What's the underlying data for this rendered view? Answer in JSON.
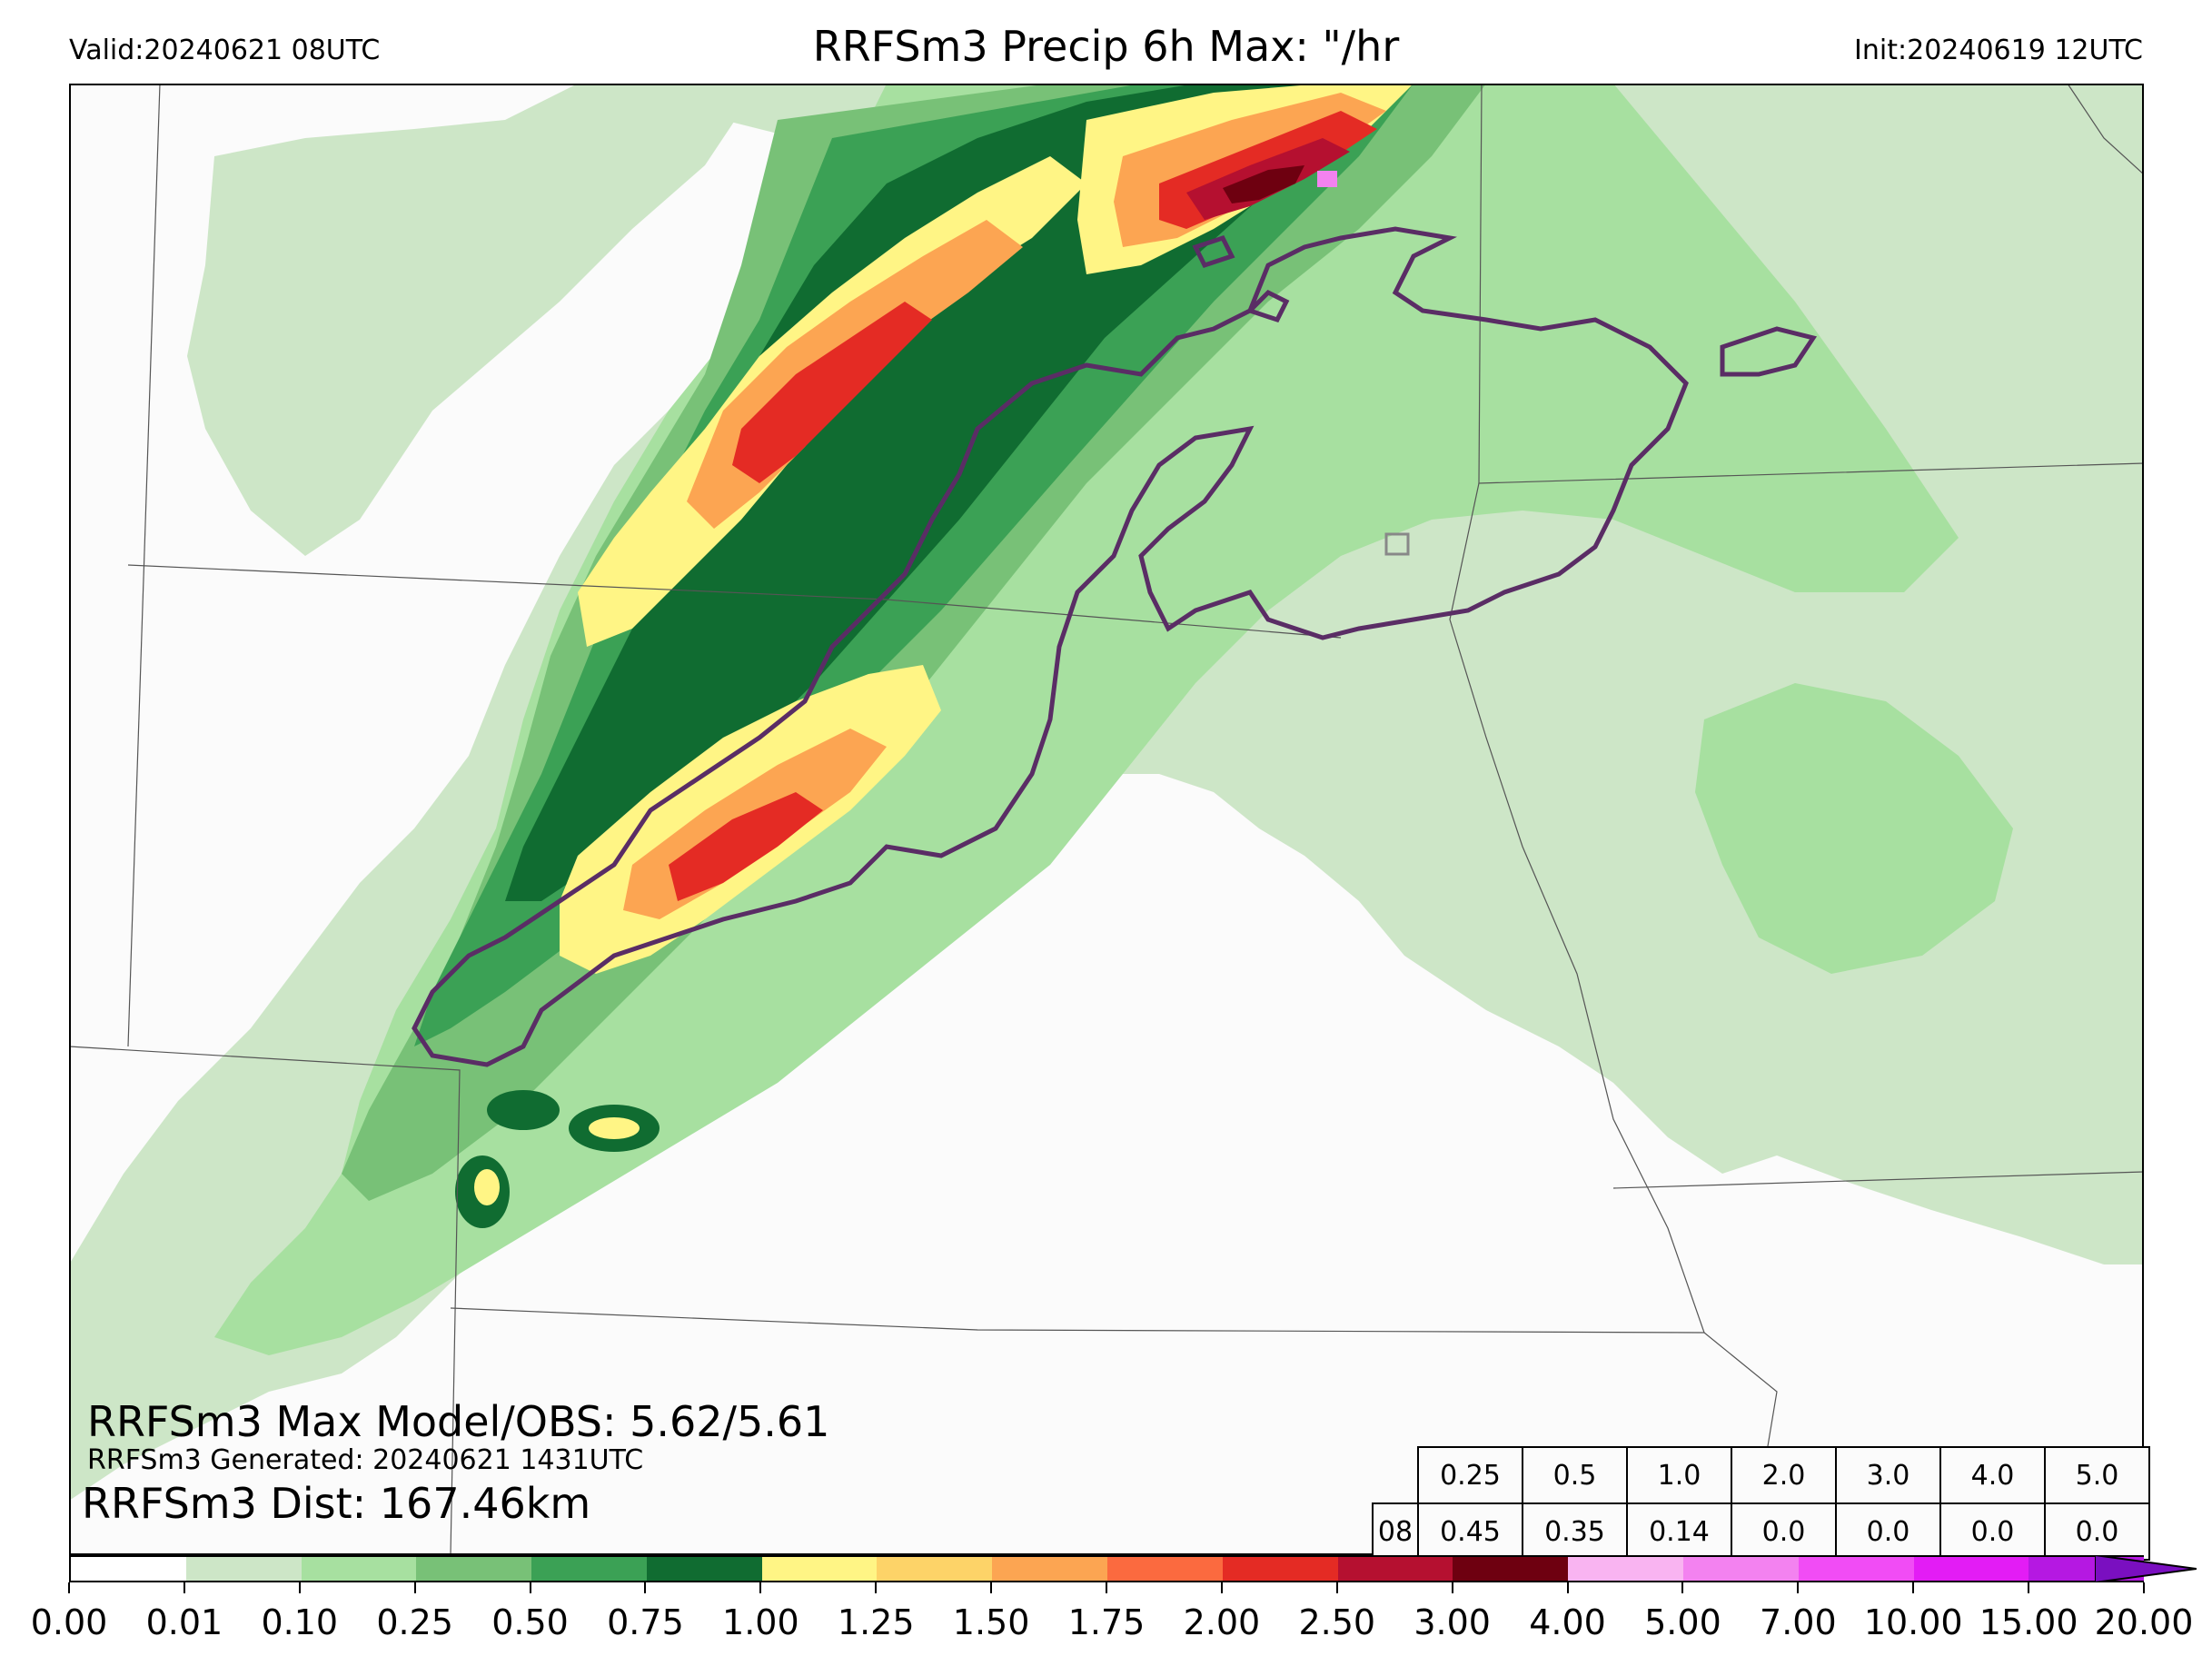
{
  "header": {
    "valid": "Valid:20240621 08UTC",
    "title": "RRFSm3 Precip 6h Max: \"/hr",
    "init": "Init:20240619 12UTC"
  },
  "annotations": {
    "max_model_obs": "RRFSm3 Max Model/OBS: 5.62/5.61",
    "generated": "RRFSm3 Generated: 20240621 1431UTC",
    "distance": "RRFSm3 Dist: 167.46km"
  },
  "threshold_table": {
    "hour": "08",
    "thresholds": [
      "0.25",
      "0.5",
      "1.0",
      "2.0",
      "3.0",
      "4.0",
      "5.0"
    ],
    "fractions": [
      "0.45",
      "0.35",
      "0.14",
      "0.0",
      "0.0",
      "0.0",
      "0.0"
    ]
  },
  "colorbar": {
    "labels": [
      "0.00",
      "0.01",
      "0.10",
      "0.25",
      "0.50",
      "0.75",
      "1.00",
      "1.25",
      "1.50",
      "1.75",
      "2.00",
      "2.50",
      "3.00",
      "4.00",
      "5.00",
      "7.00",
      "10.00",
      "15.00",
      "20.00"
    ],
    "colors": [
      "#ffffff",
      "#cde6c7",
      "#a7e0a0",
      "#78c177",
      "#3ba155",
      "#106c31",
      "#fff585",
      "#fdd368",
      "#fca552",
      "#fb6a3f",
      "#e42b24",
      "#b51030",
      "#6e0010",
      "#f9b4f1",
      "#f382f0",
      "#f14cf5",
      "#e31cf5",
      "#b518e2",
      "#7a0fc0"
    ],
    "extend_color": "#7a0fc0"
  },
  "map": {
    "contour_color": "#5a2d65",
    "colors_used": {
      "light": "#cde6c7",
      "green1": "#a7e0a0",
      "green2": "#78c177",
      "green3": "#3ba155",
      "darkgreen": "#106c31",
      "yellow": "#fff585",
      "orange": "#fca552",
      "red": "#e42b24",
      "darkred": "#b51030",
      "maroon": "#6e0010",
      "pink": "#f382f0"
    }
  }
}
